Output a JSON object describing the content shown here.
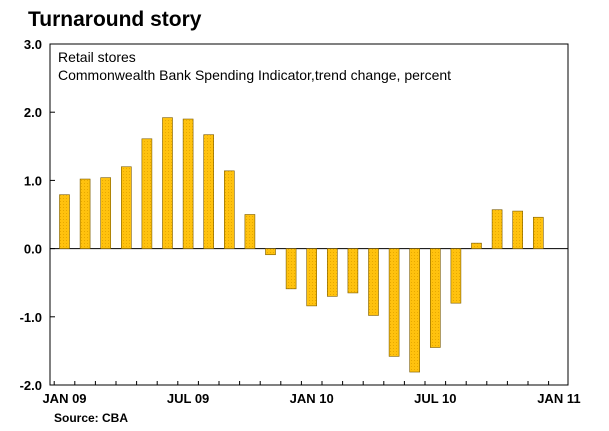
{
  "chart_data": {
    "type": "bar",
    "title": "Turnaround story",
    "subtitle_lines": [
      "Retail stores",
      "Commonwealth Bank Spending Indicator,trend change, percent"
    ],
    "source": "Source: CBA",
    "ylim": [
      -2.0,
      3.0
    ],
    "yticks": [
      3.0,
      2.0,
      1.0,
      0.0,
      -1.0,
      -2.0
    ],
    "ytick_labels": [
      "3.0",
      "2.0",
      "1.0",
      "0.0",
      "-1.0",
      "-2.0"
    ],
    "x_tick_labels": [
      {
        "label": "JAN 09",
        "index": 0
      },
      {
        "label": "JUL 09",
        "index": 6
      },
      {
        "label": "JAN 10",
        "index": 12
      },
      {
        "label": "JUL 10",
        "index": 18
      },
      {
        "label": "JAN 11",
        "index": 24
      }
    ],
    "categories": [
      "Jan 09",
      "Feb 09",
      "Mar 09",
      "Apr 09",
      "May 09",
      "Jun 09",
      "Jul 09",
      "Aug 09",
      "Sep 09",
      "Oct 09",
      "Nov 09",
      "Dec 09",
      "Jan 10",
      "Feb 10",
      "Mar 10",
      "Apr 10",
      "May 10",
      "Jun 10",
      "Jul 10",
      "Aug 10",
      "Sep 10",
      "Oct 10",
      "Nov 10",
      "Dec 10"
    ],
    "values": [
      0.79,
      1.02,
      1.04,
      1.2,
      1.61,
      1.92,
      1.9,
      1.67,
      1.14,
      0.5,
      -0.09,
      -0.59,
      -0.84,
      -0.7,
      -0.65,
      -0.98,
      -1.58,
      -1.81,
      -1.45,
      -0.8,
      0.08,
      0.57,
      0.55,
      0.46
    ],
    "colors": {
      "bar_fill": "#FFC20E",
      "bar_stroke": "#7a5a00",
      "axis": "#000000",
      "plot_border": "#000000"
    },
    "grid": false,
    "legend": "none"
  }
}
